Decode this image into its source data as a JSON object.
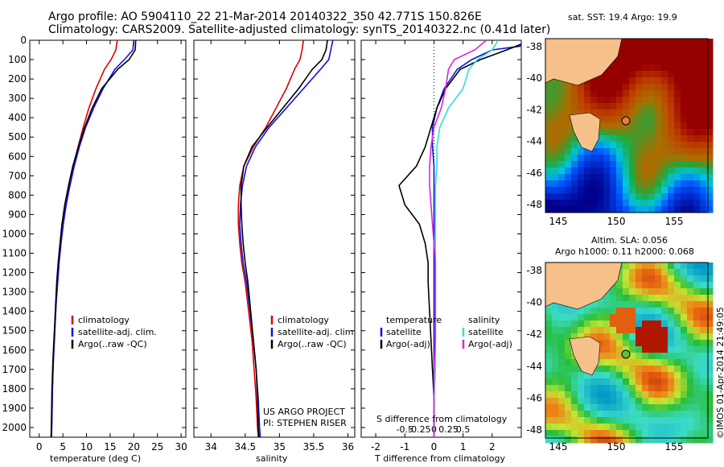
{
  "header": {
    "line1": "Argo profile: AO 5904110_22 21-Mar-2014 20140322_350 42.771S 150.826E",
    "line2": "Climatology: CARS2009. Satellite-adjusted climatology: synTS_20140322.nc (0.41d later)"
  },
  "colors": {
    "climatology": "#dd0000",
    "satellite": "#1010e0",
    "argo": "#000000",
    "sat_salinity": "#33dddd",
    "argo_salinity": "#dd22dd"
  },
  "chart_data": [
    {
      "type": "line",
      "xlabel": "temperature (deg C)",
      "ylabel": "",
      "xlim": [
        -2,
        31
      ],
      "ylim": [
        2050,
        0
      ],
      "xticks": [
        0,
        5,
        10,
        15,
        20,
        25,
        30
      ],
      "yticks": [
        0,
        100,
        200,
        300,
        400,
        500,
        600,
        700,
        800,
        900,
        1000,
        1100,
        1200,
        1300,
        1400,
        1500,
        1600,
        1700,
        1800,
        1900,
        2000
      ],
      "legend": [
        "climatology",
        "satellite-adj. clim.",
        "Argo(..raw -QC)"
      ],
      "series": [
        {
          "name": "climatology",
          "x": [
            16.5,
            16.2,
            15.2,
            13.8,
            12.0,
            10.5,
            9.3,
            8.2,
            7.2,
            6.3,
            5.6,
            5.0,
            4.6,
            4.2,
            3.9,
            3.6,
            3.4,
            3.2,
            3.0,
            2.8,
            2.7,
            2.6
          ],
          "y": [
            0,
            50,
            100,
            150,
            250,
            350,
            450,
            550,
            650,
            750,
            850,
            950,
            1050,
            1150,
            1250,
            1350,
            1450,
            1550,
            1650,
            1800,
            1950,
            2050
          ]
        },
        {
          "name": "satellite-adj. clim.",
          "x": [
            20.0,
            19.8,
            18.0,
            16.0,
            13.5,
            11.5,
            9.8,
            8.5,
            7.4,
            6.5,
            5.7,
            5.1,
            4.6,
            4.2,
            3.9,
            3.6,
            3.4,
            3.2,
            3.0,
            2.8,
            2.7,
            2.6
          ],
          "y": [
            0,
            50,
            100,
            150,
            250,
            350,
            450,
            550,
            650,
            750,
            850,
            950,
            1050,
            1150,
            1250,
            1350,
            1450,
            1550,
            1650,
            1800,
            1950,
            2050
          ]
        },
        {
          "name": "Argo(..raw -QC)",
          "x": [
            20.4,
            20.3,
            19.0,
            16.6,
            13.2,
            11.2,
            9.6,
            8.3,
            7.1,
            6.2,
            5.4,
            4.8,
            4.4,
            4.0,
            3.7,
            3.5,
            3.3,
            3.1,
            2.9,
            2.7,
            2.6,
            2.5
          ],
          "y": [
            0,
            50,
            100,
            150,
            250,
            350,
            450,
            550,
            650,
            750,
            850,
            950,
            1050,
            1150,
            1250,
            1350,
            1450,
            1550,
            1650,
            1800,
            1950,
            2050
          ]
        }
      ]
    },
    {
      "type": "line",
      "xlabel": "salinity",
      "xlim": [
        33.75,
        36.1
      ],
      "ylim": [
        2050,
        0
      ],
      "xticks": [
        34,
        34.5,
        35,
        35.5,
        36
      ],
      "legend": [
        "climatology",
        "satellite-adj. clim.",
        "Argo(..raw -QC)"
      ],
      "annotation": [
        "US ARGO PROJECT",
        "PI: STEPHEN RISER"
      ],
      "series": [
        {
          "name": "climatology",
          "x": [
            35.35,
            35.33,
            35.3,
            35.22,
            35.1,
            34.95,
            34.8,
            34.62,
            34.48,
            34.42,
            34.4,
            34.4,
            34.42,
            34.45,
            34.5,
            34.55,
            34.6,
            34.63,
            34.66,
            34.68,
            34.69
          ],
          "y": [
            0,
            50,
            100,
            150,
            250,
            350,
            450,
            550,
            650,
            750,
            850,
            950,
            1050,
            1150,
            1250,
            1400,
            1550,
            1700,
            1850,
            2000,
            2050
          ]
        },
        {
          "name": "satellite-adj. clim.",
          "x": [
            35.78,
            35.75,
            35.72,
            35.6,
            35.35,
            35.1,
            34.85,
            34.65,
            34.52,
            34.46,
            34.43,
            34.42,
            34.44,
            34.47,
            34.52,
            34.57,
            34.62,
            34.66,
            34.69,
            34.71,
            34.72
          ],
          "y": [
            0,
            50,
            100,
            150,
            250,
            350,
            450,
            550,
            650,
            750,
            850,
            950,
            1050,
            1150,
            1250,
            1400,
            1550,
            1700,
            1850,
            2000,
            2050
          ]
        },
        {
          "name": "Argo(..raw -QC)",
          "x": [
            35.7,
            35.68,
            35.62,
            35.48,
            35.28,
            35.05,
            34.82,
            34.6,
            34.48,
            34.44,
            34.44,
            34.45,
            34.47,
            34.5,
            34.54,
            34.58,
            34.62,
            34.66,
            34.68,
            34.69,
            34.7
          ],
          "y": [
            0,
            50,
            100,
            150,
            250,
            350,
            450,
            550,
            650,
            750,
            850,
            950,
            1050,
            1150,
            1250,
            1400,
            1550,
            1700,
            1850,
            2000,
            2050
          ]
        }
      ]
    },
    {
      "type": "line",
      "xlabel": "T difference from climatology",
      "xlabel_top": "S difference from climatology",
      "xlim": [
        -2.5,
        3
      ],
      "ylim": [
        2050,
        0
      ],
      "xticks": [
        -2,
        -1,
        0,
        1,
        2
      ],
      "xticks_top": [
        "-0.5",
        "-0.25",
        "0",
        "0.25",
        "0.5"
      ],
      "legend_title_left": "temperature",
      "legend_title_right": "salinity",
      "legend": [
        "satellite",
        "Argo(-adj)",
        "satellite",
        "Argo(-adj)"
      ],
      "series": [
        {
          "name": "temperature satellite",
          "x": [
            3.0,
            2.0,
            1.3,
            0.8,
            0.35,
            0.1,
            -0.05,
            -0.05,
            0,
            0,
            0,
            0,
            0,
            0,
            0,
            0,
            0,
            0,
            0,
            0,
            0
          ],
          "y": [
            30,
            50,
            100,
            150,
            250,
            350,
            450,
            550,
            650,
            750,
            850,
            950,
            1050,
            1150,
            1250,
            1400,
            1550,
            1700,
            1850,
            2000,
            2050
          ]
        },
        {
          "name": "temperature Argo(-adj)",
          "x": [
            3.0,
            2.5,
            1.6,
            0.9,
            0.4,
            0.1,
            -0.1,
            -0.3,
            -0.6,
            -1.2,
            -1.0,
            -0.5,
            -0.3,
            -0.2,
            -0.2,
            -0.15,
            -0.1,
            -0.05,
            0,
            0,
            0
          ],
          "y": [
            20,
            50,
            100,
            150,
            250,
            350,
            450,
            550,
            650,
            750,
            850,
            950,
            1050,
            1150,
            1250,
            1400,
            1550,
            1700,
            1850,
            2000,
            2050
          ]
        },
        {
          "name": "salinity satellite",
          "x": [
            2.2,
            2.0,
            1.5,
            1.2,
            1.0,
            0.5,
            0.2,
            0.1,
            0.1,
            0.05,
            0.05,
            0.05,
            0.05,
            0.05,
            0.05,
            0.05,
            0.05,
            0.05,
            0,
            0,
            0
          ],
          "y": [
            0,
            50,
            100,
            150,
            250,
            350,
            450,
            550,
            650,
            750,
            850,
            950,
            1050,
            1150,
            1250,
            1400,
            1550,
            1700,
            1850,
            2000,
            2050
          ]
        },
        {
          "name": "salinity Argo(-adj)",
          "x": [
            1.8,
            1.4,
            0.7,
            0.5,
            0.4,
            0.25,
            0.0,
            -0.1,
            -0.15,
            -0.15,
            -0.1,
            -0.05,
            0,
            0.05,
            0.05,
            0.05,
            0.05,
            0,
            0,
            0,
            0
          ],
          "y": [
            0,
            50,
            100,
            150,
            250,
            350,
            450,
            550,
            650,
            750,
            850,
            950,
            1050,
            1150,
            1250,
            1400,
            1550,
            1700,
            1850,
            2000,
            2050
          ]
        }
      ]
    }
  ],
  "maps": {
    "sst": {
      "title": "sat. SST: 19.4  Argo: 19.9",
      "xticks": [
        "145",
        "150",
        "155"
      ],
      "yticks": [
        "-38",
        "-40",
        "-42",
        "-44",
        "-46",
        "-48"
      ]
    },
    "sla": {
      "title1": "Altim. SLA: 0.056",
      "title2": "Argo h1000: 0.11 h2000: 0.068",
      "xticks": [
        "145",
        "150",
        "155"
      ],
      "yticks": [
        "-38",
        "-40",
        "-42",
        "-44",
        "-46",
        "-48"
      ]
    }
  },
  "credit": "©IMOS 01-Apr-2014 21:49:05"
}
